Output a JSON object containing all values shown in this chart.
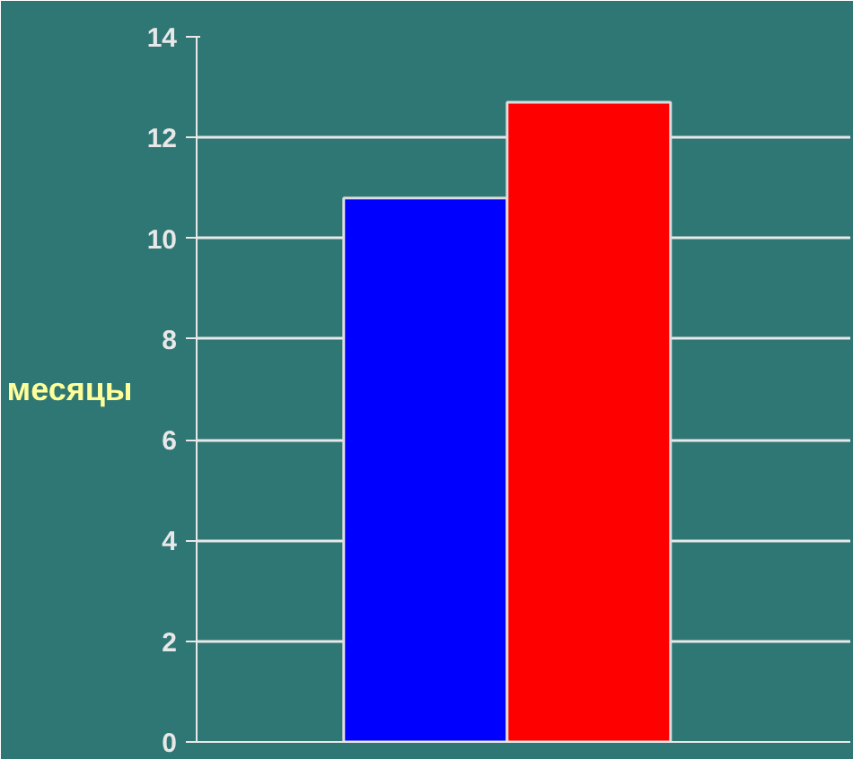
{
  "chart_data": {
    "type": "bar",
    "ylabel": "месяцы",
    "categories": [
      null,
      null
    ],
    "values": [
      10.8,
      12.7
    ],
    "colors": [
      "#0000ff",
      "#ff0000"
    ],
    "ylim": [
      0,
      14
    ],
    "yticks": [
      0,
      2,
      4,
      6,
      8,
      10,
      12,
      14
    ],
    "grid": "y",
    "tick_labels": "y"
  }
}
